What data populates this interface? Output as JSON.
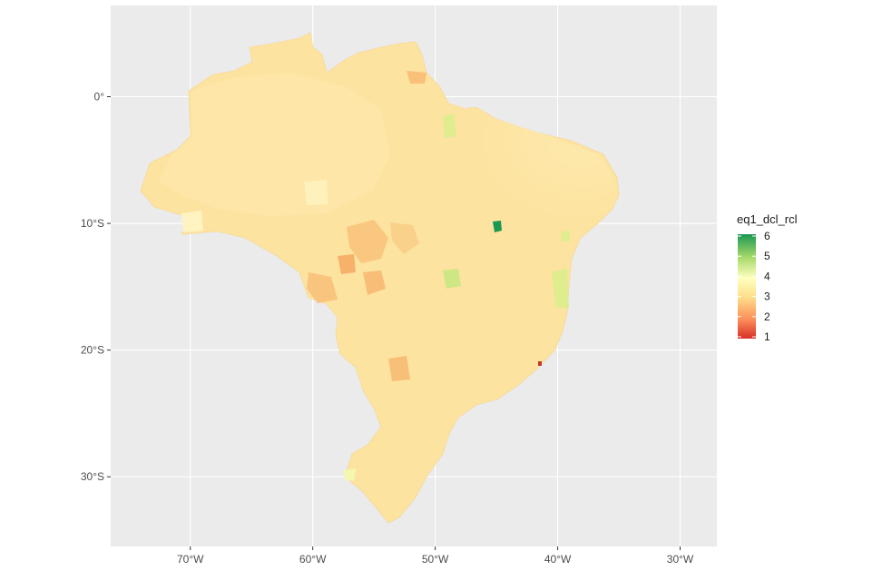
{
  "chart_data": {
    "type": "choropleth",
    "title": "",
    "xlabel": "",
    "ylabel": "",
    "x_axis": {
      "ticks": [
        {
          "value": -70,
          "label": "70°W"
        },
        {
          "value": -60,
          "label": "60°W"
        },
        {
          "value": -50,
          "label": "50°W"
        },
        {
          "value": -40,
          "label": "40°W"
        },
        {
          "value": -30,
          "label": "30°W"
        }
      ],
      "range": [
        -76.5,
        -27
      ]
    },
    "y_axis": {
      "ticks": [
        {
          "value": 0,
          "label": "0°"
        },
        {
          "value": -10,
          "label": "10°S"
        },
        {
          "value": -20,
          "label": "20°S"
        },
        {
          "value": -30,
          "label": "30°S"
        }
      ],
      "range": [
        -35.5,
        7.2
      ]
    },
    "grid": true,
    "legend": {
      "title": "eq1_dcl_rcl",
      "position": "right",
      "min": 1,
      "max": 6,
      "breaks": [
        1,
        2,
        3,
        4,
        5,
        6
      ],
      "palette": [
        "#d73027",
        "#fc8d59",
        "#fee08b",
        "#ffffbf",
        "#d9ef8b",
        "#91cf60",
        "#1a9850"
      ]
    },
    "regions": [
      {
        "name": "",
        "value": 3.1
      },
      {
        "name": "",
        "value": 6.0
      },
      {
        "name": "",
        "value": 1.2
      },
      {
        "name": "",
        "value": 4.4
      },
      {
        "name": "",
        "value": 4.3
      }
    ]
  },
  "colors": {
    "panel_background": "#ebebeb",
    "grid_line": "#ffffff",
    "base_fill": "#fde3a0",
    "north_fill": "#fee4a3",
    "highlight_high": "#1a9850",
    "highlight_low": "#d73027"
  }
}
